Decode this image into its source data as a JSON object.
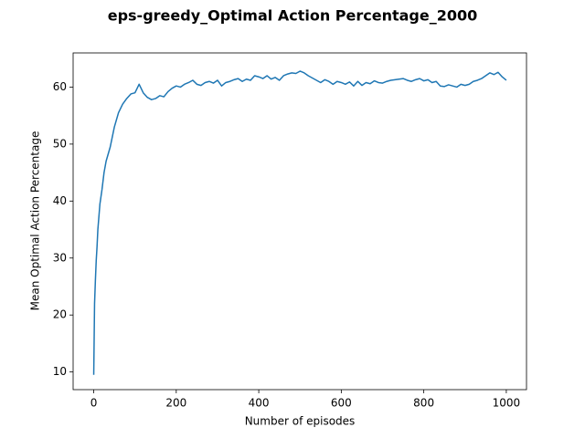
{
  "chart_data": {
    "type": "line",
    "title": "eps-greedy_Optimal Action Percentage_2000",
    "xlabel": "Number of episodes",
    "ylabel": "Mean Optimal Action Percentage",
    "color": "#1f77b4",
    "grid": false,
    "x": [
      0,
      2,
      4,
      6,
      8,
      10,
      15,
      20,
      25,
      30,
      40,
      50,
      60,
      70,
      80,
      90,
      100,
      110,
      120,
      130,
      140,
      150,
      160,
      170,
      180,
      190,
      200,
      210,
      220,
      230,
      240,
      250,
      260,
      270,
      280,
      290,
      300,
      310,
      320,
      330,
      340,
      350,
      360,
      370,
      380,
      390,
      400,
      410,
      420,
      430,
      440,
      450,
      460,
      470,
      480,
      490,
      500,
      510,
      520,
      530,
      540,
      550,
      560,
      570,
      580,
      590,
      600,
      610,
      620,
      630,
      640,
      650,
      660,
      670,
      680,
      690,
      700,
      710,
      720,
      730,
      740,
      750,
      760,
      770,
      780,
      790,
      800,
      810,
      820,
      830,
      840,
      850,
      860,
      870,
      880,
      890,
      900,
      910,
      920,
      930,
      940,
      950,
      960,
      970,
      980,
      990,
      1000
    ],
    "values": [
      9.5,
      22,
      26,
      29.5,
      32,
      35,
      39.5,
      42,
      45,
      47,
      49.5,
      53,
      55.5,
      57,
      58,
      58.8,
      59,
      60.5,
      59,
      58.2,
      57.8,
      58,
      58.5,
      58.3,
      59.2,
      59.8,
      60.2,
      60,
      60.5,
      60.8,
      61.2,
      60.5,
      60.3,
      60.8,
      61,
      60.7,
      61.2,
      60.2,
      60.8,
      61,
      61.3,
      61.5,
      61,
      61.4,
      61.2,
      62,
      61.8,
      61.5,
      62,
      61.4,
      61.7,
      61.2,
      62,
      62.3,
      62.5,
      62.4,
      62.8,
      62.5,
      62,
      61.6,
      61.2,
      60.8,
      61.3,
      61,
      60.5,
      61,
      60.8,
      60.5,
      60.9,
      60.2,
      61,
      60.3,
      60.8,
      60.6,
      61.1,
      60.8,
      60.7,
      61,
      61.2,
      61.3,
      61.4,
      61.5,
      61.2,
      61,
      61.3,
      61.5,
      61.1,
      61.3,
      60.8,
      61,
      60.2,
      60.1,
      60.4,
      60.2,
      60,
      60.5,
      60.3,
      60.5,
      61,
      61.2,
      61.5,
      62,
      62.5,
      62.2,
      62.6,
      61.8,
      61.2
    ],
    "xlim": [
      -49.95,
      1048.95
    ],
    "ylim": [
      6.9,
      66.0
    ],
    "xticks": [
      0,
      200,
      400,
      600,
      800,
      1000
    ],
    "yticks": [
      10,
      20,
      30,
      40,
      50,
      60
    ]
  }
}
